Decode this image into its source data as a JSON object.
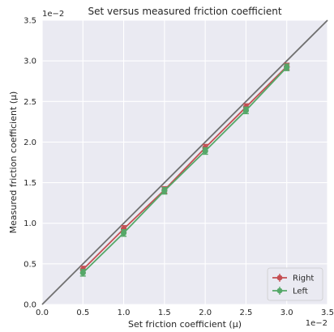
{
  "chart_data": {
    "type": "line",
    "title": "Set versus measured friction coefficient",
    "xlabel": "Set friction coefficient (μ)",
    "ylabel": "Measured friction coefficient (μ)",
    "x_multiplier": "1e−2",
    "y_multiplier": "1e−2",
    "xlim": [
      0,
      0.035
    ],
    "ylim": [
      0,
      0.035
    ],
    "x_ticks": [
      0,
      0.005,
      0.01,
      0.015,
      0.02,
      0.025,
      0.03,
      0.035
    ],
    "y_ticks": [
      0,
      0.005,
      0.01,
      0.015,
      0.02,
      0.025,
      0.03,
      0.035
    ],
    "x_tick_labels": [
      "0.0",
      "0.5",
      "1.0",
      "1.5",
      "2.0",
      "2.5",
      "3.0",
      "3.5"
    ],
    "y_tick_labels": [
      "0.0",
      "0.5",
      "1.0",
      "1.5",
      "2.0",
      "2.5",
      "3.0",
      "3.5"
    ],
    "grid": true,
    "legend_position": "bottom-right",
    "reference_line": {
      "x": [
        0,
        0.035
      ],
      "y": [
        0,
        0.035
      ],
      "color": "#707070"
    },
    "series": [
      {
        "name": "Right",
        "color": "#c44e52",
        "x": [
          0.005,
          0.01,
          0.015,
          0.02,
          0.025,
          0.03
        ],
        "y": [
          0.0043,
          0.0093,
          0.0141,
          0.0193,
          0.0243,
          0.0293
        ],
        "err": [
          0.0004,
          0.0004,
          0.0004,
          0.0004,
          0.0004,
          0.0004
        ]
      },
      {
        "name": "Left",
        "color": "#55a868",
        "x": [
          0.005,
          0.01,
          0.015,
          0.02,
          0.025,
          0.03
        ],
        "y": [
          0.0039,
          0.0088,
          0.014,
          0.0189,
          0.0239,
          0.0292
        ],
        "err": [
          0.0004,
          0.0004,
          0.0004,
          0.0004,
          0.0004,
          0.0004
        ]
      }
    ]
  }
}
